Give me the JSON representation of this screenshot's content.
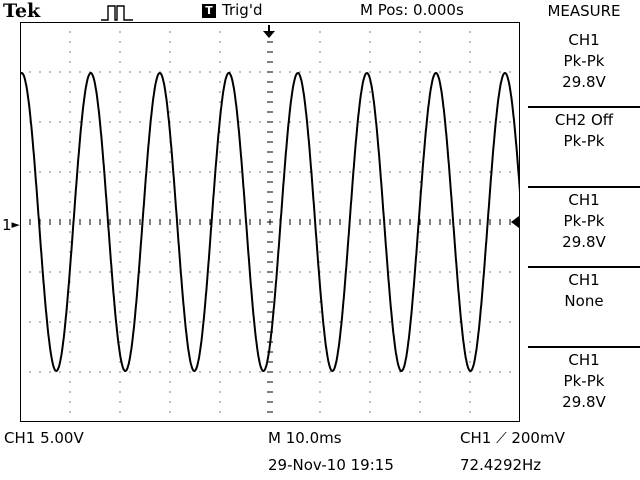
{
  "header": {
    "brand": "Tek",
    "trigger_icon_glyph": "T",
    "trigger_status": "Trig'd",
    "menu_position": "M Pos: 0.000s"
  },
  "side_menu": {
    "title": "MEASURE",
    "items": [
      {
        "line1": "CH1",
        "line2": "Pk-Pk",
        "line3": "29.8V"
      },
      {
        "line1": "CH2 Off",
        "line2": "Pk-Pk",
        "line3": ""
      },
      {
        "line1": "CH1",
        "line2": "Pk-Pk",
        "line3": "29.8V"
      },
      {
        "line1": "CH1",
        "line2": "None",
        "line3": ""
      },
      {
        "line1": "CH1",
        "line2": "Pk-Pk",
        "line3": "29.8V"
      }
    ]
  },
  "footer": {
    "ch1_scale": "CH1  5.00V",
    "timebase": "M 10.0ms",
    "date": "29-Nov-10 19:15",
    "trigger_level": "CH1 ⟋ 200mV",
    "frequency": "72.4292Hz"
  },
  "channel_marker": "1",
  "icons": {
    "trigger_position": "trigger-position-arrow-icon",
    "trigger_level": "trigger-level-arrow-icon",
    "acquisition": "pulse-acquisition-icon"
  },
  "chart_data": {
    "type": "line",
    "series": [
      {
        "waveform": "sine",
        "frequency_hz": 72.4292,
        "peak_to_peak_v": 29.8
      }
    ],
    "x_divisions": 10,
    "y_divisions": 8,
    "time_per_div_s": 0.01,
    "volts_per_div": 5.0,
    "grid": true
  }
}
